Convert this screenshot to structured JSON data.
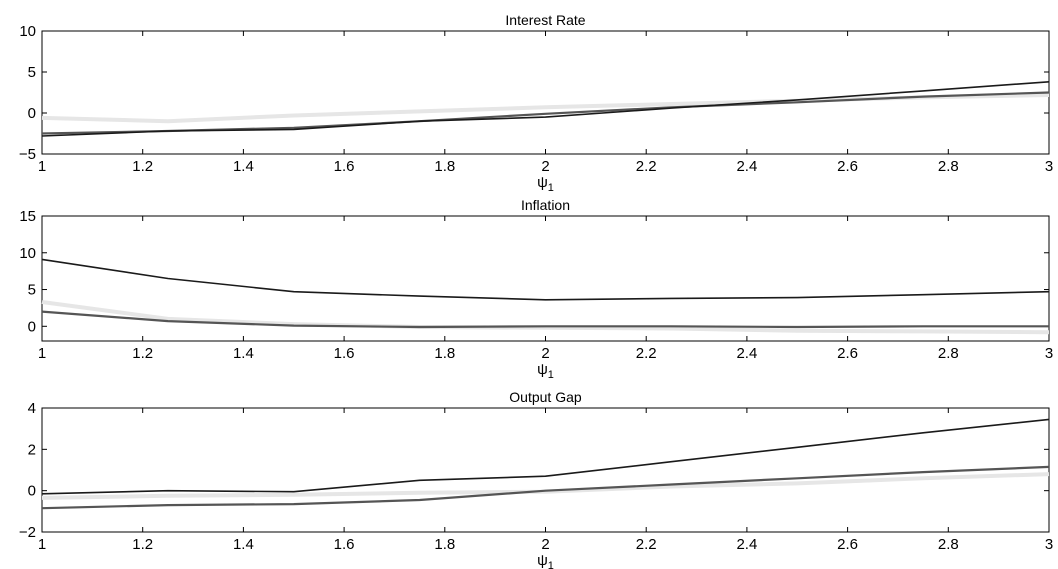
{
  "chart_data": [
    {
      "type": "line",
      "title": "Interest Rate",
      "xlabel": "ψ",
      "xlabel_sub": "1",
      "x": [
        1,
        1.25,
        1.5,
        1.75,
        2,
        2.25,
        2.5,
        2.75,
        3
      ],
      "xlim": [
        1,
        3
      ],
      "ylim": [
        -5,
        10
      ],
      "xticks": [
        1,
        1.2,
        1.4,
        1.6,
        1.8,
        2,
        2.2,
        2.4,
        2.6,
        2.8,
        3
      ],
      "xtick_labels": [
        "1",
        "1.2",
        "1.4",
        "1.6",
        "1.8",
        "2",
        "2.2",
        "2.4",
        "2.6",
        "2.8",
        "3"
      ],
      "yticks": [
        -5,
        0,
        5,
        10
      ],
      "ytick_labels": [
        "−5",
        "0",
        "5",
        "10"
      ],
      "grid": false,
      "series": [
        {
          "color": "#e6e6e6",
          "values": [
            -0.6,
            -1.0,
            -0.3,
            0.2,
            0.7,
            1.1,
            1.5,
            1.9,
            2.2
          ]
        },
        {
          "color": "#555555",
          "values": [
            -2.5,
            -2.2,
            -1.8,
            -1.0,
            -0.1,
            0.7,
            1.3,
            2.0,
            2.5
          ]
        },
        {
          "color": "#1a1a1a",
          "values": [
            -2.8,
            -2.2,
            -2.0,
            -1.0,
            -0.5,
            0.6,
            1.6,
            2.7,
            3.8
          ]
        }
      ]
    },
    {
      "type": "line",
      "title": "Inflation",
      "xlabel": "ψ",
      "xlabel_sub": "1",
      "x": [
        1,
        1.25,
        1.5,
        1.75,
        2,
        2.25,
        2.5,
        2.75,
        3
      ],
      "xlim": [
        1,
        3
      ],
      "ylim": [
        -2,
        15
      ],
      "xticks": [
        1,
        1.2,
        1.4,
        1.6,
        1.8,
        2,
        2.2,
        2.4,
        2.6,
        2.8,
        3
      ],
      "xtick_labels": [
        "1",
        "1.2",
        "1.4",
        "1.6",
        "1.8",
        "2",
        "2.2",
        "2.4",
        "2.6",
        "2.8",
        "3"
      ],
      "yticks": [
        0,
        5,
        10,
        15
      ],
      "ytick_labels": [
        "0",
        "5",
        "10",
        "15"
      ],
      "grid": false,
      "series": [
        {
          "color": "#e6e6e6",
          "values": [
            3.3,
            1.0,
            0.3,
            -0.1,
            -0.2,
            -0.3,
            -0.6,
            -0.7,
            -0.8
          ]
        },
        {
          "color": "#555555",
          "values": [
            2.0,
            0.7,
            0.1,
            -0.1,
            0.0,
            0.0,
            -0.1,
            0.0,
            0.0
          ]
        },
        {
          "color": "#1a1a1a",
          "values": [
            9.1,
            6.5,
            4.7,
            4.1,
            3.6,
            3.8,
            3.9,
            4.3,
            4.7
          ]
        }
      ]
    },
    {
      "type": "line",
      "title": "Output Gap",
      "xlabel": "ψ",
      "xlabel_sub": "1",
      "x": [
        1,
        1.25,
        1.5,
        1.75,
        2,
        2.25,
        2.5,
        2.75,
        3
      ],
      "xlim": [
        1,
        3
      ],
      "ylim": [
        -2,
        4
      ],
      "xticks": [
        1,
        1.2,
        1.4,
        1.6,
        1.8,
        2,
        2.2,
        2.4,
        2.6,
        2.8,
        3
      ],
      "xtick_labels": [
        "1",
        "1.2",
        "1.4",
        "1.6",
        "1.8",
        "2",
        "2.2",
        "2.4",
        "2.6",
        "2.8",
        "3"
      ],
      "yticks": [
        -2,
        0,
        2,
        4
      ],
      "ytick_labels": [
        "−2",
        "0",
        "2",
        "4"
      ],
      "grid": false,
      "series": [
        {
          "color": "#e6e6e6",
          "values": [
            -0.35,
            -0.25,
            -0.2,
            -0.1,
            -0.05,
            0.2,
            0.35,
            0.6,
            0.8
          ]
        },
        {
          "color": "#555555",
          "values": [
            -0.85,
            -0.7,
            -0.65,
            -0.45,
            0.0,
            0.3,
            0.6,
            0.9,
            1.15
          ]
        },
        {
          "color": "#1a1a1a",
          "values": [
            -0.15,
            0.0,
            -0.05,
            0.5,
            0.7,
            1.4,
            2.1,
            2.8,
            3.45
          ]
        }
      ]
    }
  ]
}
